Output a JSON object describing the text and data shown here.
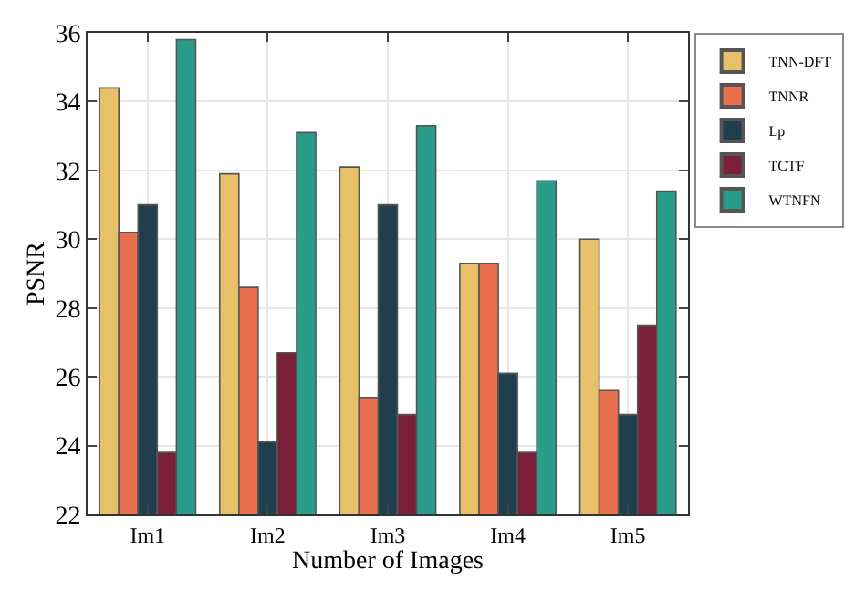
{
  "chart_data": {
    "type": "bar",
    "xlabel": "Number of Images",
    "ylabel": "PSNR",
    "categories": [
      "Im1",
      "Im2",
      "Im3",
      "Im4",
      "Im5"
    ],
    "series": [
      {
        "name": "TNN-DFT",
        "color": "#e8c06a",
        "values": [
          34.4,
          31.9,
          32.1,
          29.3,
          30.0
        ]
      },
      {
        "name": "TNNR",
        "color": "#e8704f",
        "values": [
          30.2,
          28.6,
          25.4,
          29.3,
          25.6
        ]
      },
      {
        "name": "Lp",
        "color": "#1f3f4f",
        "values": [
          31.0,
          24.1,
          31.0,
          26.1,
          24.9
        ]
      },
      {
        "name": "TCTF",
        "color": "#7a1f3a",
        "values": [
          23.8,
          26.7,
          24.9,
          23.8,
          27.5
        ]
      },
      {
        "name": "WTNFN",
        "color": "#2a9d8a",
        "values": [
          35.8,
          33.1,
          33.3,
          31.7,
          31.4
        ]
      }
    ],
    "ylim": [
      22,
      36
    ],
    "yticks": [
      22,
      24,
      26,
      28,
      30,
      32,
      34,
      36
    ],
    "grid": true,
    "legend": "top right"
  }
}
